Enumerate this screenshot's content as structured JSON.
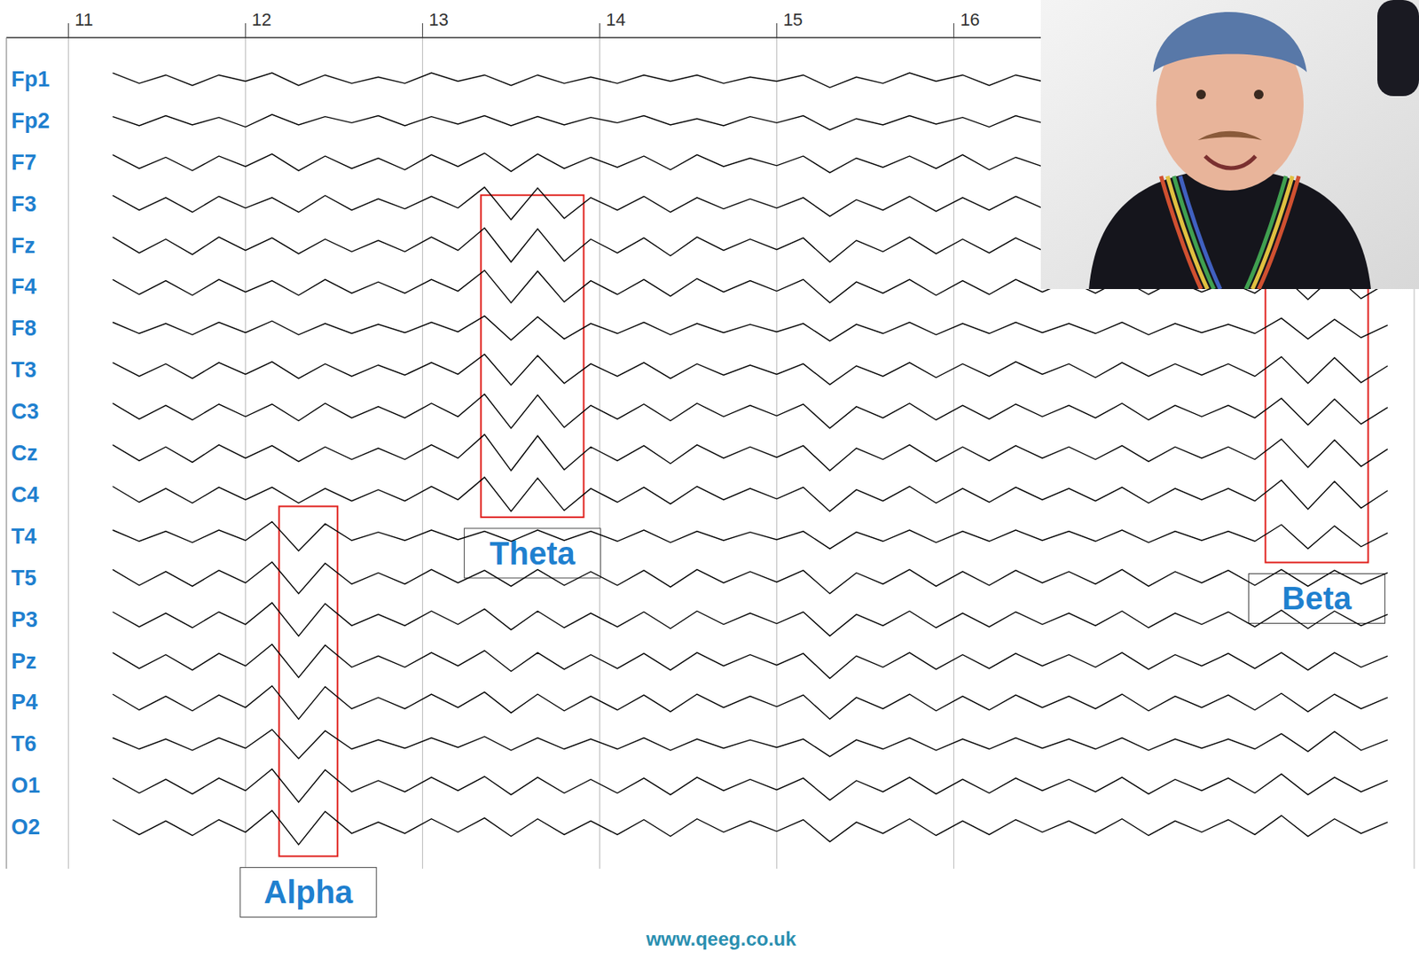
{
  "chart_data": {
    "type": "line",
    "x": [
      11.25,
      11.4,
      11.55,
      11.7,
      11.85,
      12.0,
      12.15,
      12.3,
      12.45,
      12.6,
      12.75,
      12.9,
      13.05,
      13.2,
      13.35,
      13.5,
      13.65,
      13.8,
      13.95,
      14.1,
      14.25,
      14.4,
      14.55,
      14.7,
      14.85,
      15.0,
      15.15,
      15.3,
      15.45,
      15.6,
      15.75,
      15.9,
      16.05,
      16.2,
      16.35,
      16.5,
      16.65,
      16.8,
      16.95,
      17.1,
      17.25,
      17.4,
      17.55,
      17.7,
      17.85,
      18.0,
      18.15,
      18.3,
      18.45
    ],
    "xlim": [
      10.65,
      18.6
    ],
    "xticks": [
      11,
      12,
      13,
      14,
      15,
      16
    ],
    "ylim": [
      0,
      20
    ],
    "yticks": [
      {
        "value": 1,
        "label": "Fp1"
      },
      {
        "value": 2,
        "label": "Fp2"
      },
      {
        "value": 3,
        "label": "F7"
      },
      {
        "value": 4,
        "label": "F3"
      },
      {
        "value": 5,
        "label": "Fz"
      },
      {
        "value": 6,
        "label": "F4"
      },
      {
        "value": 7,
        "label": "F8"
      },
      {
        "value": 8,
        "label": "T3"
      },
      {
        "value": 9,
        "label": "C3"
      },
      {
        "value": 10,
        "label": "Cz"
      },
      {
        "value": 11,
        "label": "C4"
      },
      {
        "value": 12,
        "label": "T4"
      },
      {
        "value": 13,
        "label": "T5"
      },
      {
        "value": 14,
        "label": "P3"
      },
      {
        "value": 15,
        "label": "Pz"
      },
      {
        "value": 16,
        "label": "P4"
      },
      {
        "value": 17,
        "label": "T6"
      },
      {
        "value": 18,
        "label": "O1"
      },
      {
        "value": 19,
        "label": "O2"
      }
    ],
    "grid": true,
    "series": [
      {
        "name": "Fp1",
        "color": "#000000",
        "values": [
          0.85,
          1.1,
          0.9,
          1.15,
          0.9,
          1.05,
          0.85,
          1.15,
          0.9,
          1.1,
          0.95,
          1.1,
          0.85,
          1.05,
          0.9,
          1.15,
          0.9,
          1.1,
          0.95,
          1.1,
          0.9,
          1.05,
          0.9,
          1.1,
          0.95,
          1.05,
          0.9,
          1.2,
          0.95,
          1.1,
          0.85,
          1.05,
          0.9,
          1.15,
          0.9,
          1.05,
          null,
          null,
          null,
          null,
          null,
          null,
          null,
          null,
          null,
          null,
          null,
          null,
          null
        ]
      },
      {
        "name": "Fp2",
        "color": "#000000",
        "values": [
          1.9,
          2.12,
          1.88,
          2.1,
          1.92,
          2.15,
          1.85,
          2.1,
          1.9,
          2.05,
          1.88,
          2.12,
          1.9,
          2.08,
          1.88,
          2.12,
          1.9,
          2.1,
          1.92,
          2.05,
          1.88,
          2.1,
          1.95,
          2.12,
          1.9,
          2.05,
          1.88,
          2.22,
          1.95,
          2.1,
          1.88,
          2.08,
          1.92,
          2.15,
          1.88,
          2.05,
          null,
          null,
          null,
          null,
          null,
          null,
          null,
          null,
          null,
          null,
          null,
          null,
          null
        ]
      },
      {
        "name": "F7",
        "color": "#000000",
        "values": [
          2.82,
          3.15,
          2.88,
          3.2,
          2.85,
          3.1,
          2.8,
          3.2,
          2.85,
          3.15,
          2.9,
          3.18,
          2.82,
          3.1,
          2.78,
          3.22,
          2.8,
          3.15,
          2.88,
          3.12,
          2.85,
          3.18,
          2.82,
          3.1,
          2.9,
          3.08,
          2.85,
          3.25,
          2.9,
          3.12,
          2.85,
          3.15,
          2.82,
          3.18,
          2.88,
          3.1,
          null,
          null,
          null,
          null,
          null,
          null,
          null,
          null,
          null,
          null,
          null,
          null,
          null
        ]
      },
      {
        "name": "F3",
        "color": "#000000",
        "values": [
          3.8,
          4.15,
          3.85,
          4.2,
          3.82,
          4.1,
          3.85,
          4.2,
          3.8,
          4.15,
          3.88,
          4.12,
          3.82,
          4.1,
          3.6,
          4.38,
          3.62,
          4.35,
          3.85,
          4.15,
          3.82,
          4.2,
          3.85,
          4.12,
          3.88,
          4.1,
          3.85,
          4.3,
          3.9,
          4.15,
          3.82,
          4.18,
          3.85,
          4.15,
          3.82,
          4.1,
          null,
          null,
          null,
          null,
          null,
          null,
          null,
          null,
          null,
          null,
          null,
          null,
          null
        ]
      },
      {
        "name": "Fz",
        "color": "#000000",
        "values": [
          4.8,
          5.18,
          4.85,
          5.22,
          4.8,
          5.12,
          4.82,
          5.2,
          4.85,
          5.15,
          4.88,
          5.15,
          4.8,
          5.12,
          4.58,
          5.4,
          4.6,
          5.38,
          4.85,
          5.18,
          4.82,
          5.25,
          4.8,
          5.12,
          4.85,
          5.1,
          4.82,
          5.4,
          4.88,
          5.15,
          4.8,
          5.2,
          4.85,
          5.18,
          4.82,
          5.12,
          null,
          null,
          null,
          null,
          null,
          null,
          null,
          null,
          null,
          null,
          null,
          null,
          null
        ]
      },
      {
        "name": "F4",
        "color": "#000000",
        "values": [
          5.82,
          6.18,
          5.85,
          6.2,
          5.82,
          6.12,
          5.85,
          6.2,
          5.82,
          6.15,
          5.88,
          6.15,
          5.82,
          6.1,
          5.6,
          6.38,
          5.62,
          6.36,
          5.85,
          6.18,
          5.82,
          6.22,
          5.8,
          6.12,
          5.85,
          6.1,
          5.82,
          6.38,
          5.88,
          6.15,
          5.82,
          6.2,
          5.85,
          6.18,
          5.82,
          6.12,
          5.85,
          6.15,
          5.82,
          6.18,
          5.85,
          6.12,
          5.88,
          6.15,
          5.7,
          6.3,
          5.72,
          6.28,
          5.9
        ]
      },
      {
        "name": "F8",
        "color": "#000000",
        "values": [
          6.85,
          7.12,
          6.88,
          7.15,
          6.85,
          7.1,
          6.82,
          7.15,
          6.88,
          7.12,
          6.9,
          7.1,
          6.85,
          7.08,
          6.7,
          7.28,
          6.72,
          7.25,
          6.88,
          7.12,
          6.85,
          7.15,
          6.88,
          7.1,
          6.9,
          7.08,
          6.88,
          7.3,
          6.9,
          7.12,
          6.85,
          7.15,
          6.88,
          7.12,
          6.85,
          7.1,
          6.88,
          7.12,
          6.85,
          7.15,
          6.88,
          7.1,
          6.9,
          7.12,
          6.75,
          7.25,
          6.78,
          7.22,
          6.92
        ]
      },
      {
        "name": "T3",
        "color": "#000000",
        "values": [
          7.82,
          8.15,
          7.85,
          8.2,
          7.82,
          8.1,
          7.8,
          8.2,
          7.85,
          8.15,
          7.88,
          8.12,
          7.82,
          8.1,
          7.62,
          8.36,
          7.65,
          8.32,
          7.85,
          8.15,
          7.82,
          8.2,
          7.85,
          8.12,
          7.88,
          8.1,
          7.85,
          8.35,
          7.9,
          8.15,
          7.82,
          8.18,
          7.85,
          8.15,
          7.8,
          8.1,
          7.85,
          8.18,
          7.82,
          8.15,
          7.85,
          8.12,
          7.85,
          8.15,
          7.68,
          8.32,
          7.7,
          8.3,
          7.9
        ]
      },
      {
        "name": "C3",
        "color": "#000000",
        "values": [
          8.8,
          9.18,
          8.85,
          9.2,
          8.82,
          9.12,
          8.82,
          9.22,
          8.8,
          9.15,
          8.88,
          9.15,
          8.8,
          9.12,
          8.58,
          9.4,
          8.6,
          9.38,
          8.85,
          9.18,
          8.82,
          9.22,
          8.8,
          9.12,
          8.85,
          9.1,
          8.82,
          9.4,
          8.88,
          9.15,
          8.8,
          9.2,
          8.85,
          9.18,
          8.82,
          9.12,
          8.85,
          9.15,
          8.8,
          9.2,
          8.85,
          9.12,
          8.85,
          9.15,
          8.68,
          9.32,
          8.7,
          9.3,
          8.9
        ]
      },
      {
        "name": "Cz",
        "color": "#000000",
        "values": [
          9.8,
          10.18,
          9.85,
          10.22,
          9.8,
          10.12,
          9.82,
          10.2,
          9.85,
          10.15,
          9.88,
          10.15,
          9.8,
          10.12,
          9.55,
          10.42,
          9.58,
          10.4,
          9.85,
          10.18,
          9.82,
          10.25,
          9.8,
          10.12,
          9.85,
          10.1,
          9.82,
          10.42,
          9.88,
          10.15,
          9.8,
          10.2,
          9.85,
          10.18,
          9.82,
          10.12,
          9.85,
          10.15,
          9.82,
          10.2,
          9.85,
          10.12,
          9.85,
          10.15,
          9.66,
          10.34,
          9.68,
          10.32,
          9.9
        ]
      },
      {
        "name": "C4",
        "color": "#000000",
        "values": [
          10.8,
          11.18,
          10.85,
          11.2,
          10.82,
          11.12,
          10.82,
          11.2,
          10.85,
          11.15,
          10.88,
          11.15,
          10.8,
          11.12,
          10.58,
          11.4,
          10.6,
          11.38,
          10.85,
          11.18,
          10.82,
          11.22,
          10.8,
          11.12,
          10.85,
          11.1,
          10.82,
          11.4,
          10.88,
          11.15,
          10.8,
          11.2,
          10.85,
          11.18,
          10.82,
          11.12,
          10.85,
          11.15,
          10.82,
          11.2,
          10.85,
          11.12,
          10.85,
          11.15,
          10.65,
          11.35,
          10.68,
          11.32,
          10.9
        ]
      },
      {
        "name": "T4",
        "color": "#000000",
        "values": [
          11.85,
          12.12,
          11.88,
          12.15,
          11.85,
          12.1,
          11.65,
          12.35,
          11.7,
          12.1,
          11.9,
          12.1,
          11.85,
          12.08,
          11.88,
          12.12,
          11.85,
          12.1,
          11.88,
          12.12,
          11.85,
          12.15,
          11.88,
          12.1,
          11.9,
          12.08,
          11.88,
          12.3,
          11.9,
          12.12,
          11.85,
          12.15,
          11.88,
          12.12,
          11.85,
          12.1,
          11.88,
          12.12,
          11.85,
          12.15,
          11.88,
          12.1,
          11.88,
          12.12,
          11.72,
          12.3,
          11.75,
          12.25,
          11.92
        ]
      },
      {
        "name": "T5",
        "color": "#000000",
        "values": [
          12.8,
          13.18,
          12.85,
          13.2,
          12.82,
          13.12,
          12.62,
          13.38,
          12.65,
          13.15,
          12.88,
          13.15,
          12.8,
          13.12,
          12.82,
          13.2,
          12.8,
          13.18,
          12.85,
          13.18,
          12.82,
          13.22,
          12.8,
          13.12,
          12.85,
          13.1,
          12.82,
          13.38,
          12.88,
          13.15,
          12.8,
          13.2,
          12.85,
          13.18,
          12.82,
          13.12,
          12.85,
          13.15,
          12.8,
          13.2,
          12.85,
          13.12,
          12.82,
          13.18,
          12.8,
          13.2,
          12.82,
          13.15,
          12.88
        ]
      },
      {
        "name": "P3",
        "color": "#000000",
        "values": [
          13.82,
          14.18,
          13.85,
          14.2,
          13.82,
          14.12,
          13.6,
          14.4,
          13.62,
          14.15,
          13.88,
          14.15,
          13.8,
          14.12,
          13.75,
          14.25,
          13.8,
          14.2,
          13.85,
          14.18,
          13.82,
          14.22,
          13.8,
          14.12,
          13.85,
          14.1,
          13.82,
          14.4,
          13.88,
          14.15,
          13.8,
          14.2,
          13.85,
          14.18,
          13.82,
          14.12,
          13.85,
          14.15,
          13.8,
          14.2,
          13.85,
          14.12,
          13.82,
          14.18,
          13.78,
          14.22,
          13.8,
          14.15,
          13.88
        ]
      },
      {
        "name": "Pz",
        "color": "#000000",
        "values": [
          14.8,
          15.18,
          14.85,
          15.22,
          14.82,
          15.12,
          14.6,
          15.4,
          14.62,
          15.15,
          14.88,
          15.15,
          14.8,
          15.12,
          14.75,
          15.25,
          14.8,
          15.2,
          14.85,
          15.18,
          14.82,
          15.22,
          14.8,
          15.12,
          14.85,
          15.1,
          14.82,
          15.42,
          14.88,
          15.15,
          14.8,
          15.2,
          14.85,
          15.18,
          14.82,
          15.12,
          14.85,
          15.15,
          14.8,
          15.2,
          14.85,
          15.12,
          14.82,
          15.18,
          14.8,
          15.22,
          14.8,
          15.15,
          14.88
        ]
      },
      {
        "name": "P4",
        "color": "#000000",
        "values": [
          15.8,
          16.18,
          15.85,
          16.2,
          15.82,
          16.12,
          15.6,
          16.4,
          15.62,
          16.15,
          15.88,
          16.15,
          15.8,
          16.12,
          15.75,
          16.25,
          15.8,
          16.2,
          15.85,
          16.18,
          15.82,
          16.22,
          15.8,
          16.12,
          15.85,
          16.1,
          15.82,
          16.4,
          15.88,
          16.15,
          15.8,
          16.2,
          15.85,
          16.18,
          15.82,
          16.12,
          15.85,
          16.15,
          15.8,
          16.2,
          15.85,
          16.12,
          15.82,
          16.18,
          15.78,
          16.22,
          15.8,
          16.15,
          15.88
        ]
      },
      {
        "name": "T6",
        "color": "#000000",
        "values": [
          16.85,
          17.12,
          16.88,
          17.15,
          16.85,
          17.1,
          16.65,
          17.35,
          16.68,
          17.12,
          16.9,
          17.1,
          16.85,
          17.08,
          16.82,
          17.15,
          16.85,
          17.12,
          16.88,
          17.12,
          16.85,
          17.15,
          16.88,
          17.1,
          16.9,
          17.08,
          16.88,
          17.3,
          16.9,
          17.12,
          16.85,
          17.15,
          16.88,
          17.12,
          16.85,
          17.1,
          16.88,
          17.12,
          16.85,
          17.15,
          16.88,
          17.1,
          16.88,
          17.12,
          16.75,
          17.18,
          16.7,
          17.15,
          16.9
        ]
      },
      {
        "name": "O1",
        "color": "#000000",
        "values": [
          17.82,
          18.18,
          17.85,
          18.2,
          17.82,
          18.12,
          17.6,
          18.4,
          17.62,
          18.15,
          17.88,
          18.15,
          17.8,
          18.12,
          17.78,
          18.22,
          17.8,
          18.18,
          17.85,
          18.18,
          17.82,
          18.22,
          17.8,
          18.12,
          17.85,
          18.1,
          17.82,
          18.35,
          17.88,
          18.15,
          17.8,
          18.2,
          17.85,
          18.18,
          17.82,
          18.12,
          17.85,
          18.15,
          17.8,
          18.2,
          17.85,
          18.12,
          17.82,
          18.18,
          17.72,
          18.22,
          17.8,
          18.15,
          17.88
        ]
      },
      {
        "name": "O2",
        "color": "#000000",
        "values": [
          18.82,
          19.18,
          18.85,
          19.2,
          18.82,
          19.12,
          18.6,
          19.42,
          18.62,
          19.15,
          18.88,
          19.15,
          18.8,
          19.12,
          18.78,
          19.22,
          18.8,
          19.18,
          18.85,
          19.18,
          18.82,
          19.22,
          18.8,
          19.12,
          18.85,
          19.1,
          18.82,
          19.35,
          18.88,
          19.15,
          18.8,
          19.2,
          18.85,
          19.18,
          18.82,
          19.12,
          18.85,
          19.15,
          18.8,
          19.2,
          18.85,
          19.12,
          18.82,
          19.18,
          18.72,
          19.22,
          18.8,
          19.15,
          18.88
        ]
      }
    ],
    "annotations": [
      {
        "text": "Theta",
        "x": [
          13.33,
          13.91
        ],
        "y": [
          3.79,
          11.54
        ]
      },
      {
        "text": "Alpha",
        "x": [
          12.19,
          12.52
        ],
        "y": [
          11.28,
          19.7
        ]
      },
      {
        "text": "Beta",
        "x": [
          17.76,
          18.34
        ],
        "y": [
          5.85,
          12.63
        ]
      }
    ],
    "footer": "www.qeeg.co.uk"
  }
}
